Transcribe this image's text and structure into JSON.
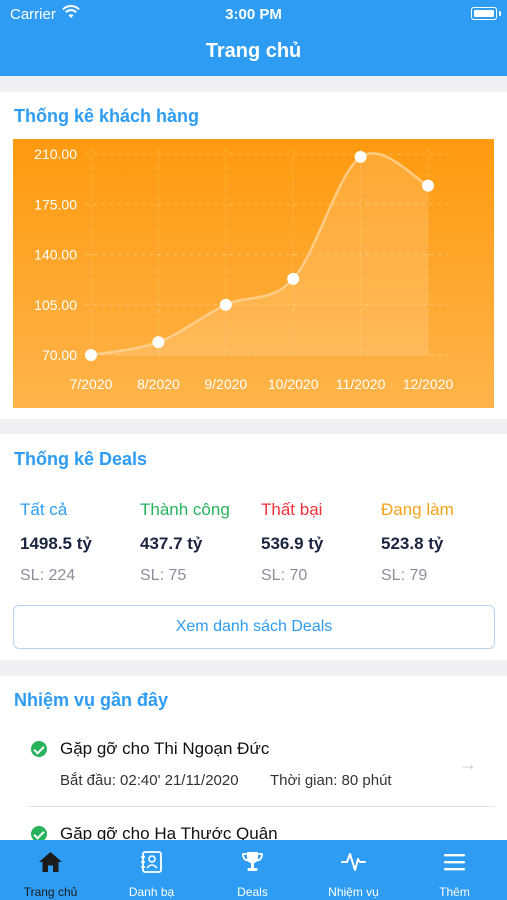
{
  "status_bar": {
    "carrier": "Carrier",
    "time": "3:00 PM"
  },
  "header": {
    "title": "Trang chủ"
  },
  "customer_stats": {
    "title": "Thống kê khách hàng"
  },
  "chart_data": {
    "type": "area",
    "x": [
      "7/2020",
      "8/2020",
      "9/2020",
      "10/2020",
      "11/2020",
      "12/2020"
    ],
    "series": [
      {
        "values": [
          70,
          79,
          105,
          123,
          208,
          188
        ]
      }
    ],
    "yticks": [
      "210.00",
      "175.00",
      "140.00",
      "105.00",
      "70.00"
    ],
    "ylim": [
      70,
      210
    ],
    "grid": true,
    "background_color": "#ff9a0f",
    "line_color": "#ffd69a",
    "point_color": "#ffffff"
  },
  "deals_stats": {
    "title": "Thống kê Deals",
    "items": [
      {
        "label": "Tất cả",
        "value": "1498.5 tỷ",
        "count": "SL: 224",
        "color": "#2e9cf2"
      },
      {
        "label": "Thành công",
        "value": "437.7 tỷ",
        "count": "SL: 75",
        "color": "#27b35b"
      },
      {
        "label": "Thất bại",
        "value": "536.9 tỷ",
        "count": "SL: 70",
        "color": "#f2333c"
      },
      {
        "label": "Đang làm",
        "value": "523.8 tỷ",
        "count": "SL: 79",
        "color": "#f5a21c"
      }
    ],
    "button_label": "Xem danh sách Deals"
  },
  "recent_tasks": {
    "title": "Nhiệm vụ gần đây",
    "items": [
      {
        "title": "Gặp gỡ cho Thi Ngoạn Đức",
        "start": "Bắt đầu: 02:40' 21/11/2020",
        "duration": "Thời gian: 80 phút",
        "icon": "check-circle-icon"
      },
      {
        "title": "Gặp gỡ cho Hạ Thước Quân",
        "icon": "check-circle-icon"
      }
    ]
  },
  "tab_bar": {
    "items": [
      {
        "label": "Trang chủ",
        "icon": "home-icon"
      },
      {
        "label": "Danh bạ",
        "icon": "contacts-icon"
      },
      {
        "label": "Deals",
        "icon": "trophy-icon"
      },
      {
        "label": "Nhiệm vụ",
        "icon": "activity-icon"
      },
      {
        "label": "Thêm",
        "icon": "menu-icon"
      }
    ]
  }
}
